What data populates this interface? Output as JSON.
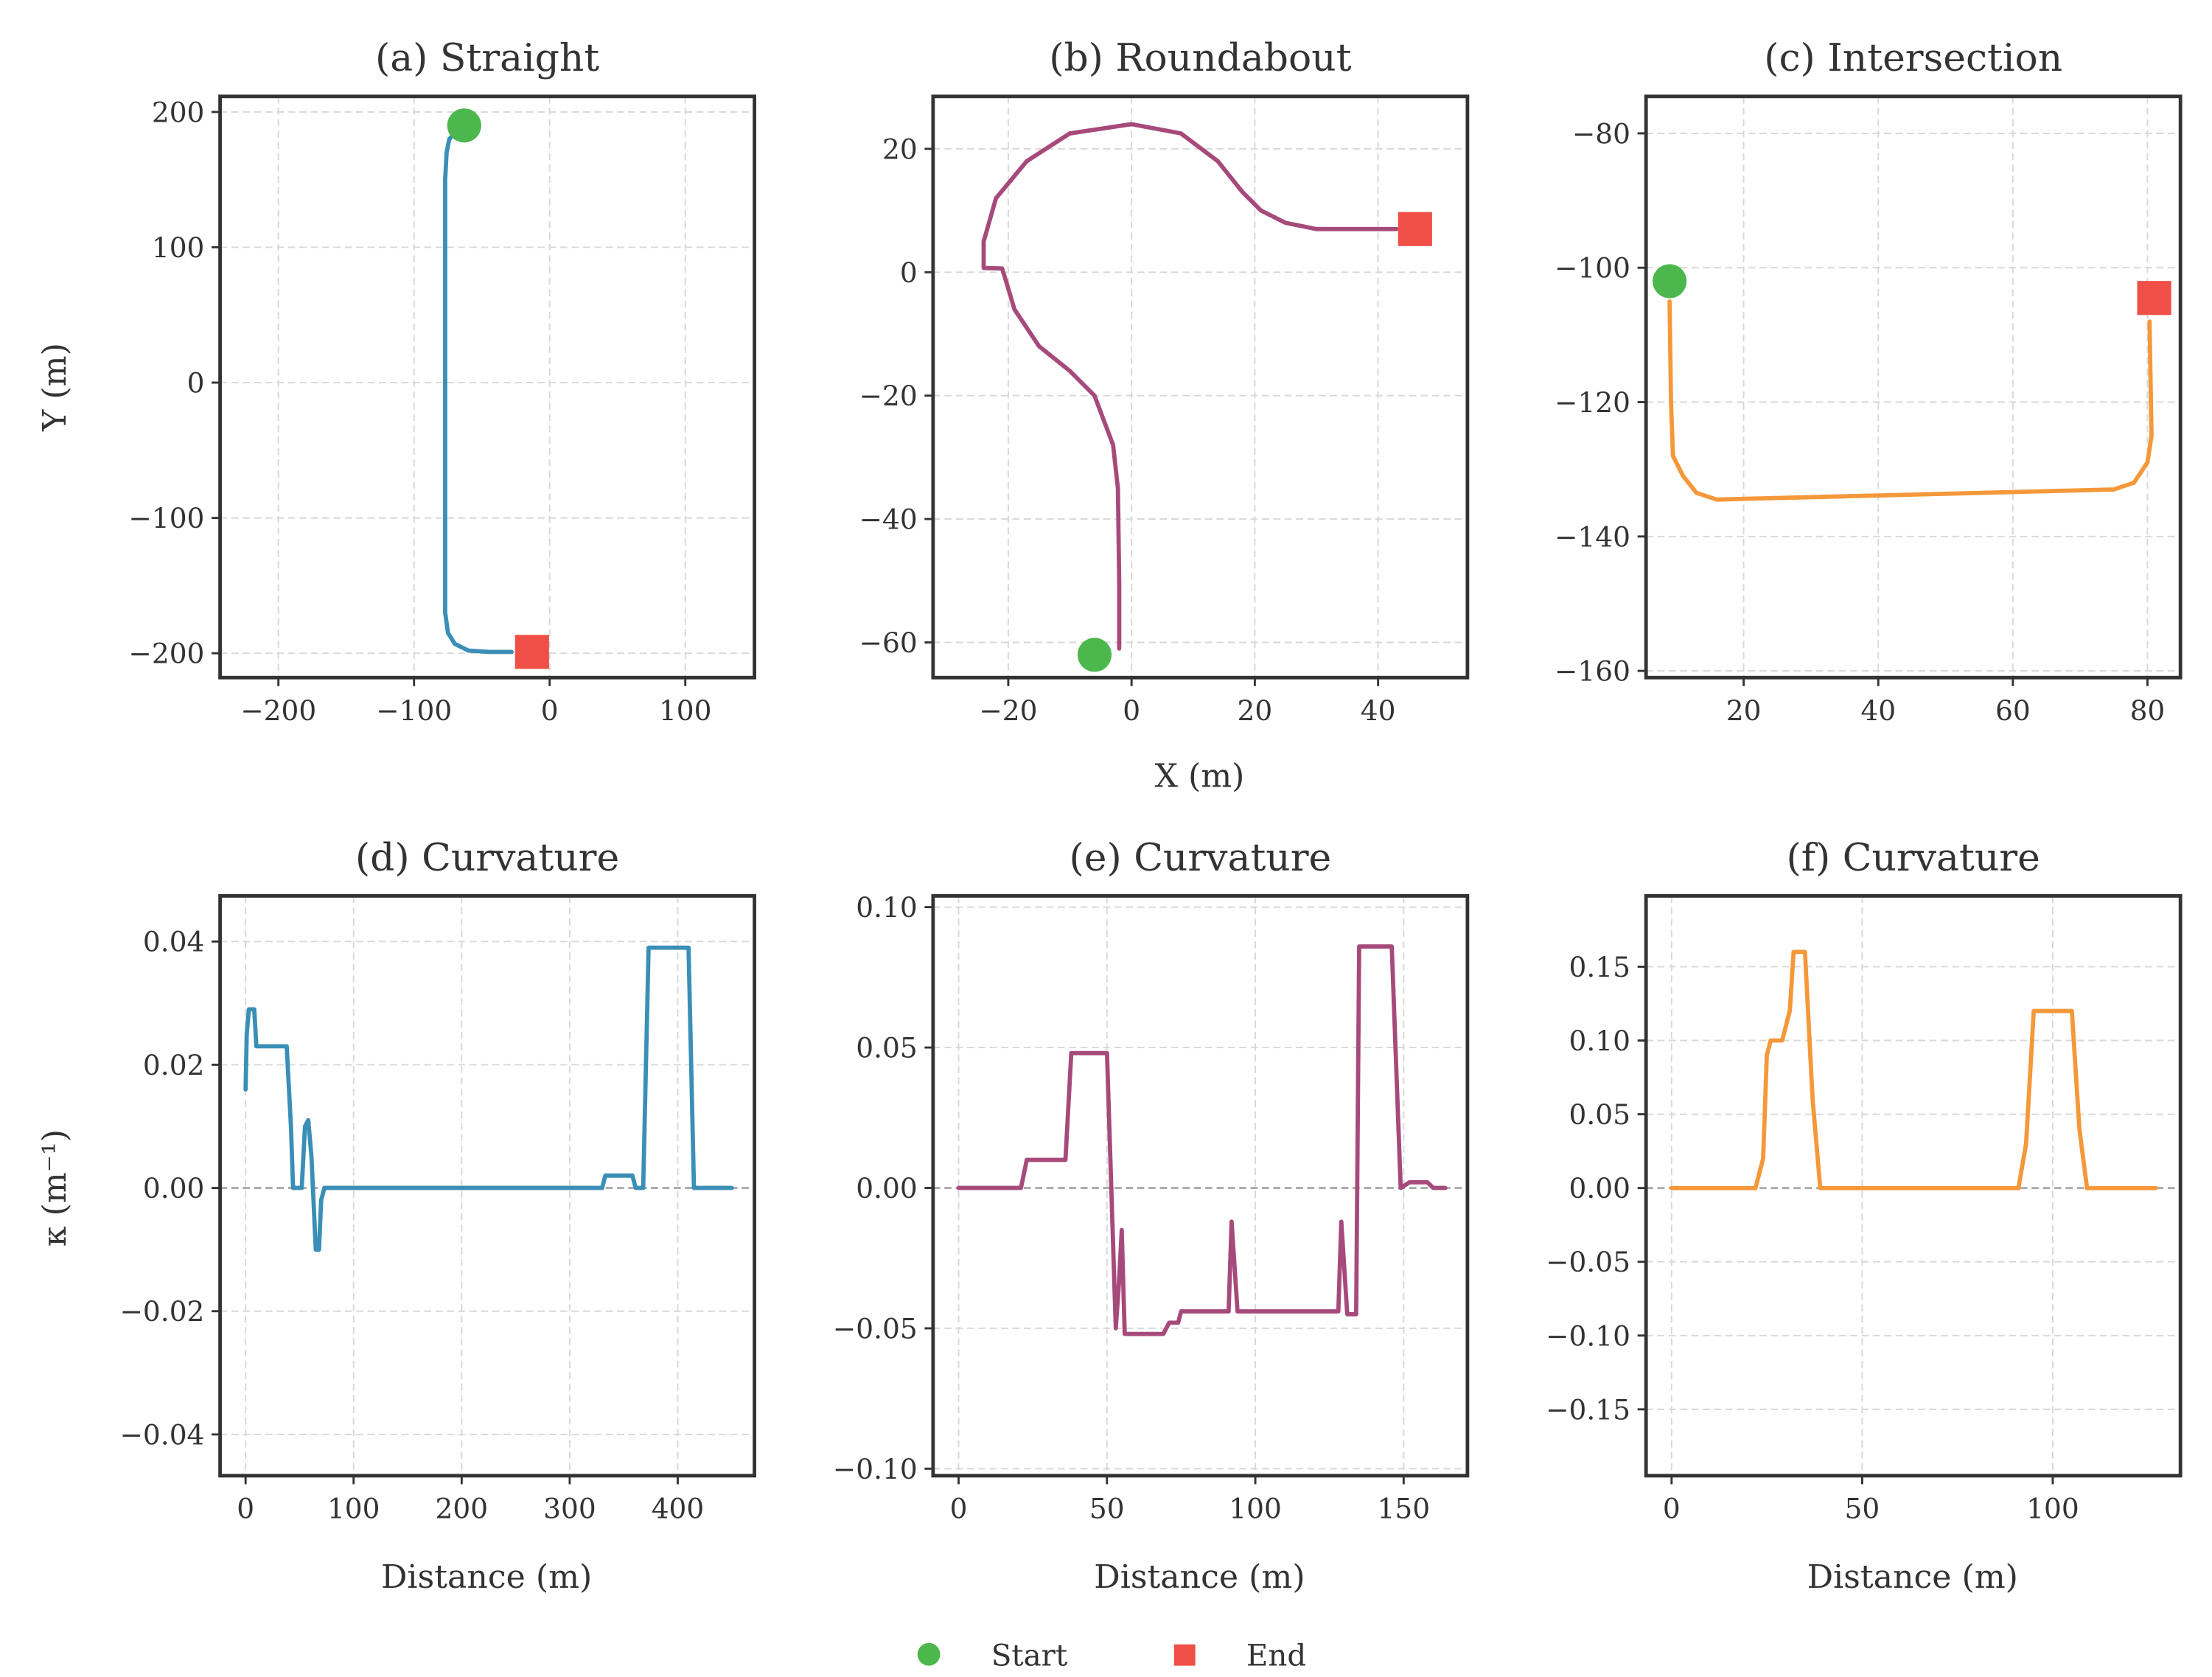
{
  "legend": {
    "start_label": "Start",
    "end_label": "End",
    "start_color": "#4cb74c",
    "end_color": "#ef4f47"
  },
  "labels": {
    "traj_ylabel": "Y (m)",
    "traj_xlabel": "X (m)",
    "curv_ylabel": "κ (m⁻¹)",
    "curv_xlabel": "Distance (m)"
  },
  "chart_data": [
    {
      "type": "line",
      "title": "(a) Straight",
      "color": "#3a8fb7",
      "xlim": [
        -243,
        151
      ],
      "ylim": [
        -218,
        211.5
      ],
      "xticks": [
        -200,
        -100,
        0,
        100
      ],
      "xticklabels": [
        "−200",
        "−100",
        "0",
        "100"
      ],
      "yticks": [
        200,
        100,
        0,
        -100,
        -200
      ],
      "yticklabels": [
        "200",
        "100",
        "0",
        "−100",
        "−200"
      ],
      "x": [
        -68,
        -74,
        -76,
        -77,
        -77,
        -75,
        -70,
        -60,
        -45,
        -28
      ],
      "y": [
        186,
        180,
        170,
        150,
        -170,
        -185,
        -193,
        -198,
        -199,
        -199
      ],
      "start": [
        -63,
        190
      ],
      "end": [
        -13,
        -199
      ]
    },
    {
      "type": "line",
      "title": "(b) Roundabout",
      "color": "#a64a7b",
      "xlim": [
        -32.2,
        54.5
      ],
      "ylim": [
        -65.7,
        28.5
      ],
      "xticks": [
        -20,
        0,
        20,
        40
      ],
      "xticklabels": [
        "−20",
        "0",
        "20",
        "40"
      ],
      "yticks": [
        20,
        0,
        -20,
        -40,
        -60
      ],
      "yticklabels": [
        "20",
        "0",
        "−20",
        "−40",
        "−60"
      ],
      "x": [
        -2,
        -2,
        -2.2,
        -3,
        -6,
        -10,
        -15,
        -19,
        -20.5,
        -21,
        -24,
        -24,
        -22,
        -17,
        -10,
        0,
        8,
        14,
        18,
        21,
        25,
        30,
        43
      ],
      "y": [
        -61,
        -50,
        -35,
        -28,
        -20,
        -16,
        -12,
        -6,
        -1,
        0.6,
        0.7,
        5,
        12,
        18,
        22.5,
        24,
        22.5,
        18,
        13,
        10,
        8,
        7,
        7
      ],
      "start": [
        -6,
        -62
      ],
      "end": [
        46,
        7
      ]
    },
    {
      "type": "line",
      "title": "(c) Intersection",
      "color": "#f4983a",
      "xlim": [
        5.5,
        84.9
      ],
      "ylim": [
        -161,
        -74.5
      ],
      "xticks": [
        20,
        40,
        60,
        80
      ],
      "xticklabels": [
        "20",
        "40",
        "60",
        "80"
      ],
      "yticks": [
        -80,
        -100,
        -120,
        -140,
        -160
      ],
      "yticklabels": [
        "−80",
        "−100",
        "−120",
        "−140",
        "−160"
      ],
      "x": [
        9,
        9.2,
        9.5,
        11,
        13,
        16,
        75,
        78,
        80,
        80.6,
        80.3
      ],
      "y": [
        -105,
        -120,
        -128,
        -131,
        -133.5,
        -134.5,
        -133,
        -132,
        -129,
        -125,
        -108
      ],
      "start": [
        9,
        -102
      ],
      "end": [
        81,
        -104.5
      ]
    },
    {
      "type": "line",
      "title": "(d) Curvature",
      "color": "#3a8fb7",
      "xlim": [
        -23.6,
        471
      ],
      "ylim": [
        -0.0467,
        0.0474
      ],
      "xticks": [
        0,
        100,
        200,
        300,
        400
      ],
      "xticklabels": [
        "0",
        "100",
        "200",
        "300",
        "400"
      ],
      "yticks": [
        0.04,
        0.02,
        0,
        -0.02,
        -0.04
      ],
      "yticklabels": [
        "0.04",
        "0.02",
        "0.00",
        "−0.02",
        "−0.04"
      ],
      "x": [
        0,
        1,
        3,
        8,
        10,
        38,
        42,
        44,
        52,
        55,
        58,
        61,
        65,
        68,
        70,
        73,
        330,
        333,
        358,
        361,
        368,
        373,
        410,
        415,
        450
      ],
      "y": [
        0.016,
        0.025,
        0.029,
        0.029,
        0.023,
        0.023,
        0.01,
        0,
        0,
        0.01,
        0.011,
        0.005,
        -0.01,
        -0.01,
        -0.002,
        0,
        0,
        0.002,
        0.002,
        0,
        0,
        0.039,
        0.039,
        0,
        0
      ]
    },
    {
      "type": "line",
      "title": "(e) Curvature",
      "color": "#a64a7b",
      "xlim": [
        -8.6,
        171.5
      ],
      "ylim": [
        -0.1025,
        0.104
      ],
      "xticks": [
        0,
        50,
        100,
        150
      ],
      "xticklabels": [
        "0",
        "50",
        "100",
        "150"
      ],
      "yticks": [
        0.1,
        0.05,
        0,
        -0.05,
        -0.1
      ],
      "yticklabels": [
        "0.10",
        "0.05",
        "0.00",
        "−0.05",
        "−0.10"
      ],
      "x": [
        0,
        21,
        23,
        36,
        38,
        50,
        53,
        54,
        55,
        56,
        69,
        71,
        74,
        75,
        91,
        92,
        94,
        128,
        129,
        131,
        134,
        135,
        146,
        149,
        152,
        158,
        160,
        164
      ],
      "y": [
        0,
        0,
        0.01,
        0.01,
        0.048,
        0.048,
        -0.05,
        -0.035,
        -0.015,
        -0.052,
        -0.052,
        -0.048,
        -0.048,
        -0.044,
        -0.044,
        -0.012,
        -0.044,
        -0.044,
        -0.012,
        -0.045,
        -0.045,
        0.086,
        0.086,
        0,
        0.002,
        0.002,
        0,
        0
      ]
    },
    {
      "type": "line",
      "title": "(f) Curvature",
      "color": "#f4983a",
      "xlim": [
        -6.7,
        133.5
      ],
      "ylim": [
        -0.195,
        0.198
      ],
      "xticks": [
        0,
        50,
        100
      ],
      "xticklabels": [
        "0",
        "50",
        "100"
      ],
      "yticks": [
        0.15,
        0.1,
        0.05,
        0,
        -0.05,
        -0.1,
        -0.15
      ],
      "yticklabels": [
        "0.15",
        "0.10",
        "0.05",
        "0.00",
        "−0.05",
        "−0.10",
        "−0.15"
      ],
      "x": [
        0,
        22,
        24,
        25,
        26,
        29,
        31,
        32,
        35,
        37,
        39,
        91,
        93,
        95,
        105,
        107,
        109,
        127
      ],
      "y": [
        0,
        0,
        0.02,
        0.09,
        0.1,
        0.1,
        0.12,
        0.16,
        0.16,
        0.06,
        0,
        0,
        0.03,
        0.12,
        0.12,
        0.04,
        0,
        0
      ]
    }
  ]
}
